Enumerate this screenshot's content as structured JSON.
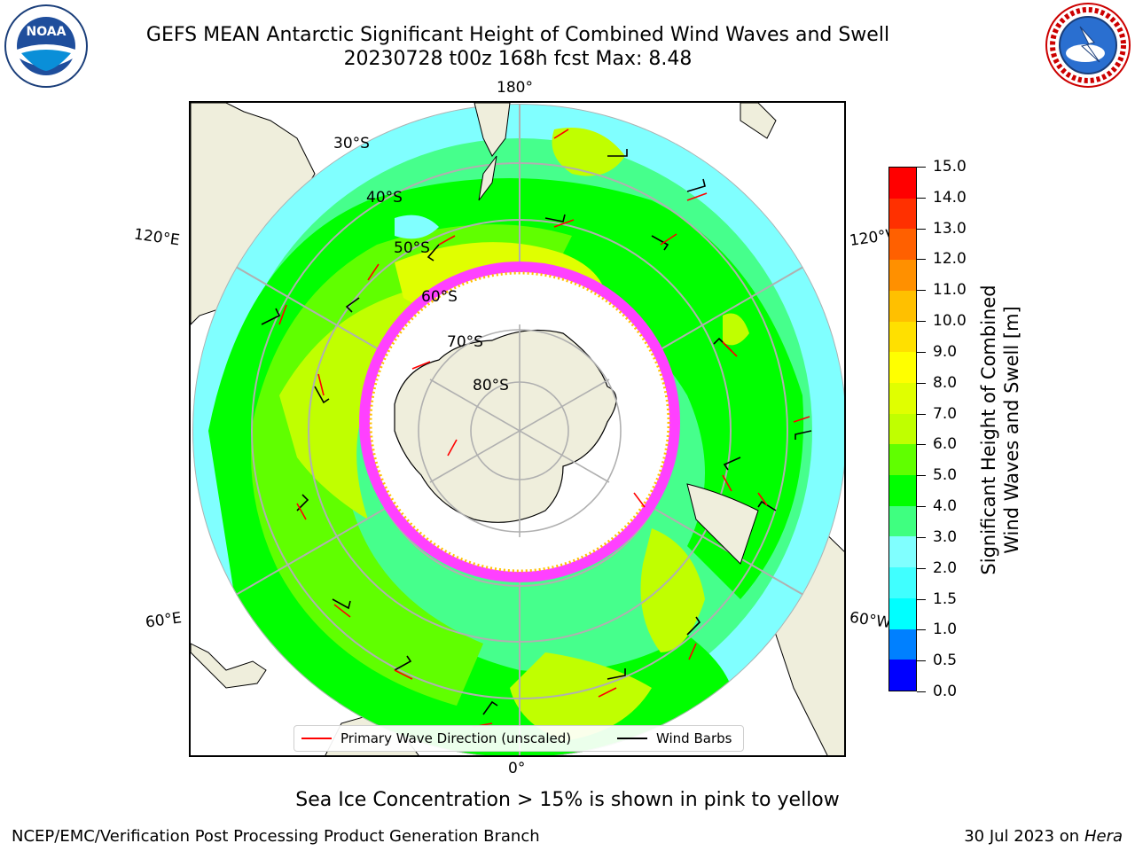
{
  "title_line1": "GEFS MEAN Antarctic Significant Height of Combined Wind Waves and Swell",
  "title_line2": "20230728 t00z 168h fcst   Max: 8.48",
  "logos": {
    "left": "noaa-logo",
    "right": "nws-logo"
  },
  "map": {
    "longitude_labels": {
      "top": "180°",
      "bottom": "0°",
      "upper_left": "120°E",
      "upper_right": "120°W",
      "lower_left": "60°E",
      "lower_right": "60°W"
    },
    "latitude_labels": [
      "30°S",
      "40°S",
      "50°S",
      "60°S",
      "70°S",
      "80°S"
    ],
    "colors": {
      "land": "#efeedc",
      "ice_edge": "#ff40ff",
      "ice_fill": "#ffffff",
      "grid": "#b0b0b0",
      "arrow": "#ff0000",
      "barb": "#000000"
    }
  },
  "legend": {
    "primary_wave": "Primary Wave Direction (unscaled)",
    "wind_barbs": "Wind Barbs"
  },
  "colorbar": {
    "label_line1": "Significant Height of Combined",
    "label_line2": "Wind Waves and Swell [m]",
    "ticks": [
      "0.0",
      "0.5",
      "1.0",
      "1.5",
      "2.0",
      "3.0",
      "4.0",
      "5.0",
      "6.0",
      "7.0",
      "8.0",
      "9.0",
      "10.0",
      "11.0",
      "12.0",
      "13.0",
      "14.0",
      "15.0"
    ],
    "colors": [
      "#0000ff",
      "#0080ff",
      "#00ffff",
      "#40ffff",
      "#80ffff",
      "#3fff80",
      "#00ff00",
      "#60ff00",
      "#c0ff00",
      "#e0ff00",
      "#ffff00",
      "#ffe000",
      "#ffc000",
      "#ff9000",
      "#ff6000",
      "#ff3000",
      "#ff0000"
    ]
  },
  "note": "Sea Ice Concentration > 15% is shown in pink to yellow",
  "footer": {
    "left": "NCEP/EMC/Verification Post Processing Product Generation Branch",
    "right_date": "30 Jul 2023 on ",
    "right_host": "Hera"
  }
}
